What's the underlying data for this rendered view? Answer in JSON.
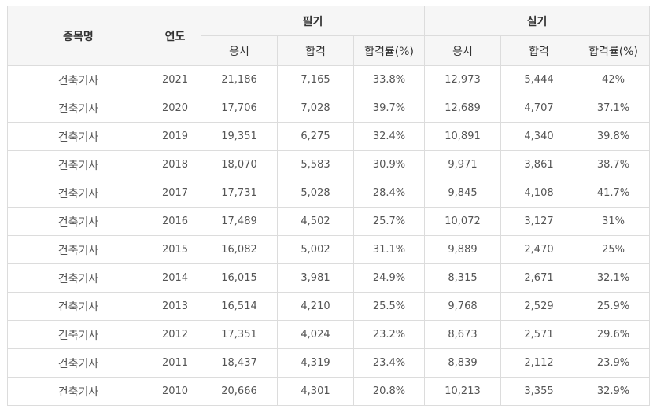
{
  "headers": {
    "name": "종목명",
    "year": "연도",
    "written": "필기",
    "practical": "실기",
    "applied": "응시",
    "passed": "합격",
    "rate": "합격률(%)"
  },
  "rows": [
    {
      "name": "건축기사",
      "year": "2021",
      "w_applied": "21,186",
      "w_passed": "7,165",
      "w_rate": "33.8%",
      "p_applied": "12,973",
      "p_passed": "5,444",
      "p_rate": "42%"
    },
    {
      "name": "건축기사",
      "year": "2020",
      "w_applied": "17,706",
      "w_passed": "7,028",
      "w_rate": "39.7%",
      "p_applied": "12,689",
      "p_passed": "4,707",
      "p_rate": "37.1%"
    },
    {
      "name": "건축기사",
      "year": "2019",
      "w_applied": "19,351",
      "w_passed": "6,275",
      "w_rate": "32.4%",
      "p_applied": "10,891",
      "p_passed": "4,340",
      "p_rate": "39.8%"
    },
    {
      "name": "건축기사",
      "year": "2018",
      "w_applied": "18,070",
      "w_passed": "5,583",
      "w_rate": "30.9%",
      "p_applied": "9,971",
      "p_passed": "3,861",
      "p_rate": "38.7%"
    },
    {
      "name": "건축기사",
      "year": "2017",
      "w_applied": "17,731",
      "w_passed": "5,028",
      "w_rate": "28.4%",
      "p_applied": "9,845",
      "p_passed": "4,108",
      "p_rate": "41.7%"
    },
    {
      "name": "건축기사",
      "year": "2016",
      "w_applied": "17,489",
      "w_passed": "4,502",
      "w_rate": "25.7%",
      "p_applied": "10,072",
      "p_passed": "3,127",
      "p_rate": "31%"
    },
    {
      "name": "건축기사",
      "year": "2015",
      "w_applied": "16,082",
      "w_passed": "5,002",
      "w_rate": "31.1%",
      "p_applied": "9,889",
      "p_passed": "2,470",
      "p_rate": "25%"
    },
    {
      "name": "건축기사",
      "year": "2014",
      "w_applied": "16,015",
      "w_passed": "3,981",
      "w_rate": "24.9%",
      "p_applied": "8,315",
      "p_passed": "2,671",
      "p_rate": "32.1%"
    },
    {
      "name": "건축기사",
      "year": "2013",
      "w_applied": "16,514",
      "w_passed": "4,210",
      "w_rate": "25.5%",
      "p_applied": "9,768",
      "p_passed": "2,529",
      "p_rate": "25.9%"
    },
    {
      "name": "건축기사",
      "year": "2012",
      "w_applied": "17,351",
      "w_passed": "4,024",
      "w_rate": "23.2%",
      "p_applied": "8,673",
      "p_passed": "2,571",
      "p_rate": "29.6%"
    },
    {
      "name": "건축기사",
      "year": "2011",
      "w_applied": "18,437",
      "w_passed": "4,319",
      "w_rate": "23.4%",
      "p_applied": "8,839",
      "p_passed": "2,112",
      "p_rate": "23.9%"
    },
    {
      "name": "건축기사",
      "year": "2010",
      "w_applied": "20,666",
      "w_passed": "4,301",
      "w_rate": "20.8%",
      "p_applied": "10,213",
      "p_passed": "3,355",
      "p_rate": "32.9%"
    }
  ]
}
